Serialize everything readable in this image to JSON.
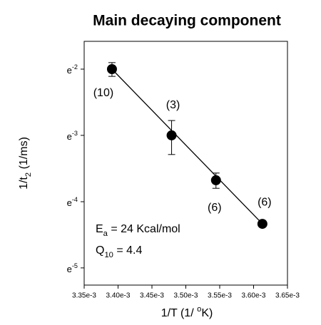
{
  "chart_data": {
    "type": "scatter",
    "title": "Main decaying component",
    "x_label": {
      "base": "1/T (1/ ",
      "sup": "o",
      "rest": "K)"
    },
    "y_label": {
      "base": "1/t",
      "sub": "2",
      "rest": " (1/ms)"
    },
    "x": [
      0.003391,
      0.003479,
      0.0035445,
      0.003613
    ],
    "series": [
      {
        "color": "#000000",
        "values": [
          0.1353,
          0.0498,
          0.0253,
          0.0131
        ],
        "errors": [
          0.014,
          0.0125,
          0.0029,
          null
        ]
      }
    ],
    "point_labels": [
      "(10)",
      "(3)",
      "(6)",
      "(6)"
    ],
    "fit_line": {
      "x": [
        0.003391,
        0.003613
      ],
      "y": [
        0.1353,
        0.0131
      ]
    },
    "annotations": [
      {
        "base": "E",
        "sub": "a",
        "rest": " = 24 Kcal/mol"
      },
      {
        "base": "Q",
        "sub": "10",
        "rest": " = 4.4"
      }
    ],
    "xlim": [
      0.00335,
      0.00365
    ],
    "xticks": [
      {
        "value": 0.00335,
        "label": "3.35e-3"
      },
      {
        "value": 0.0034,
        "label": "3.40e-3"
      },
      {
        "value": 0.00345,
        "label": "3.45e-3"
      },
      {
        "value": 0.0035,
        "label": "3.50e-3"
      },
      {
        "value": 0.00355,
        "label": "3.55e-3"
      },
      {
        "value": 0.0036,
        "label": "3.60e-3"
      },
      {
        "value": 0.00365,
        "label": "3.65e-3"
      }
    ],
    "ylim": [
      0.0052,
      0.2058
    ],
    "y_log_base": "e",
    "yticks": [
      {
        "value": 0.1353,
        "label": "e-2"
      },
      {
        "value": 0.0498,
        "label": "e-3"
      },
      {
        "value": 0.0183,
        "label": "e-4"
      },
      {
        "value": 0.00674,
        "label": "e-5"
      }
    ]
  }
}
